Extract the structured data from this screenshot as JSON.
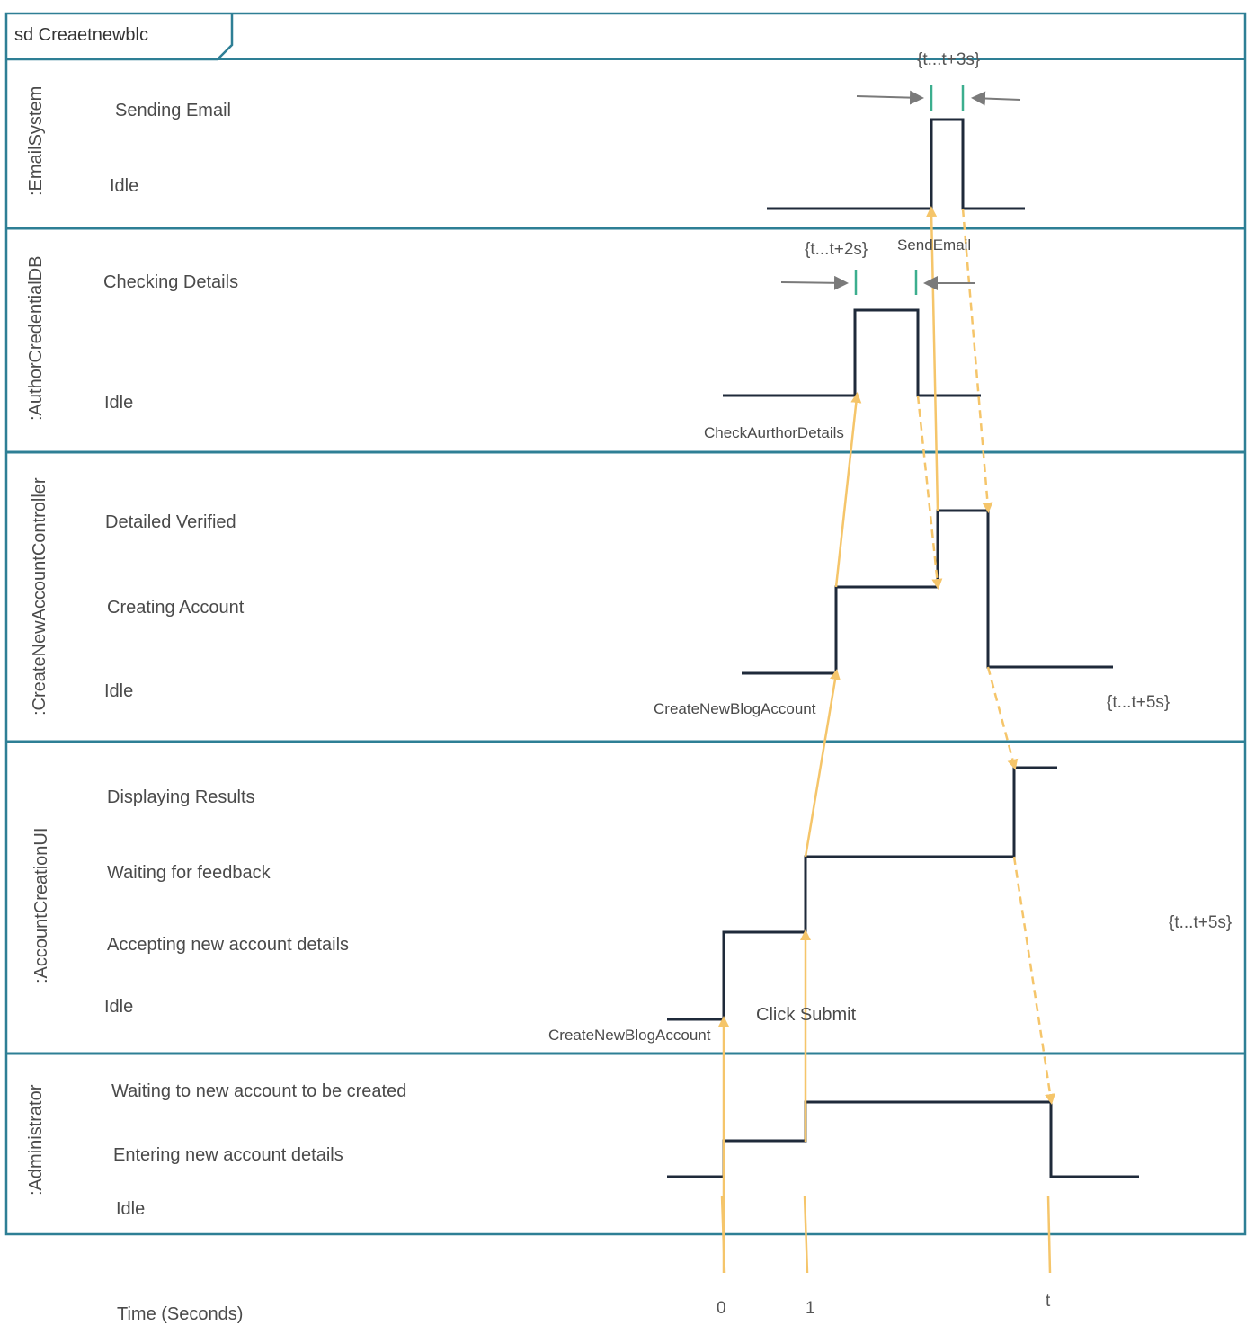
{
  "frame": {
    "title": "sd Creaetnewblc"
  },
  "lifelines": [
    {
      "name": ":EmailSystem",
      "states": [
        "Sending Email",
        "Idle"
      ]
    },
    {
      "name": ":AuthorCredentialDB",
      "states": [
        "Checking Details",
        "Idle"
      ]
    },
    {
      "name": ":CreateNewAccountController",
      "states": [
        "Detailed Verified",
        "Creating Account",
        "Idle"
      ]
    },
    {
      "name": ":AccountCreationUI",
      "states": [
        "Displaying Results",
        "Waiting for feedback",
        "Accepting new account details",
        "Idle"
      ]
    },
    {
      "name": ":Administrator",
      "states": [
        "Waiting to new account to be created",
        "Entering new account details",
        "Idle"
      ]
    }
  ],
  "messages": {
    "send_email": "SendEmail",
    "check_author": "CheckAurthorDetails",
    "create_controller": "CreateNewBlogAccount",
    "create_ui": "CreateNewBlogAccount",
    "click_submit": "Click Submit"
  },
  "constraints": {
    "email": "{t...t+3s}",
    "db": "{t...t+2s}",
    "controller": "{t...t+5s}",
    "ui": "{t...t+5s}"
  },
  "time_axis": {
    "label": "Time (Seconds)",
    "ticks": [
      "0",
      "1",
      "t"
    ]
  },
  "colors": {
    "frame": "#2e7f95",
    "timeline": "#1f2a3a",
    "message": "#f5c56a",
    "tick": "#7a7a7a",
    "marker": "#3cae8e"
  }
}
